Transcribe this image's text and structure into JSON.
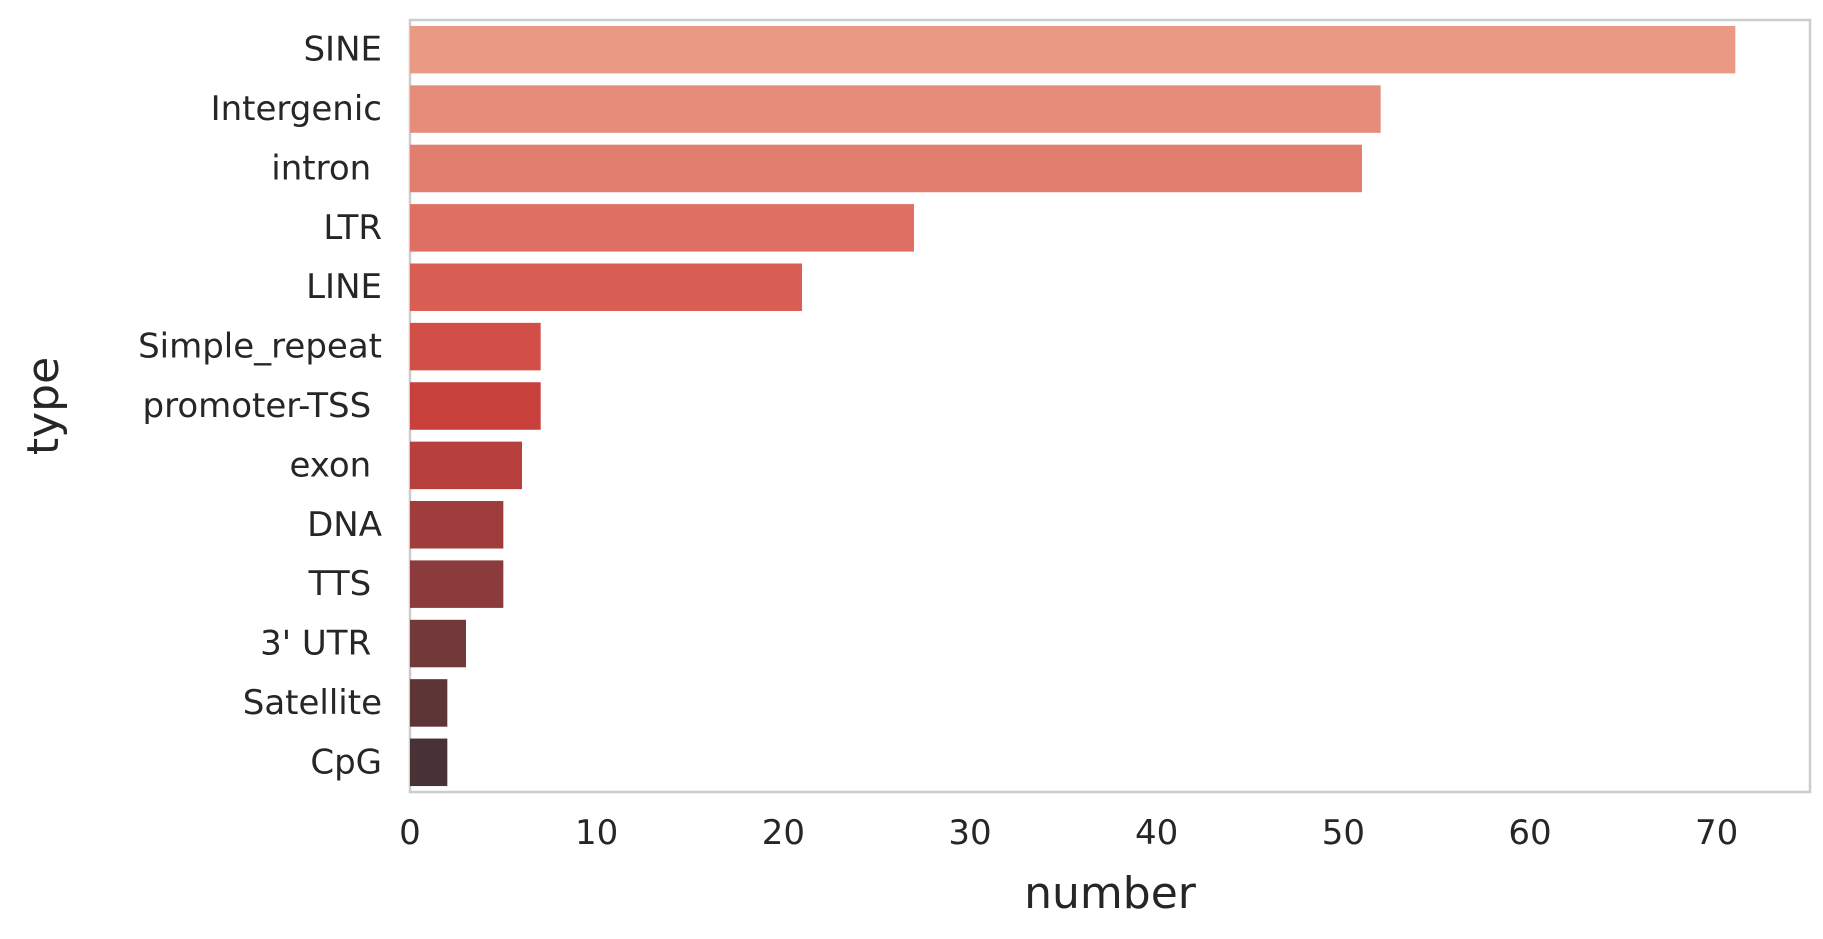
{
  "chart_data": {
    "type": "bar",
    "orientation": "horizontal",
    "categories": [
      "SINE",
      "Intergenic",
      "intron ",
      "LTR",
      "LINE",
      "Simple_repeat",
      "promoter-TSS ",
      "exon ",
      "DNA",
      "TTS ",
      "3' UTR ",
      "Satellite",
      "CpG"
    ],
    "values": [
      71,
      52,
      51,
      27,
      21,
      7,
      7,
      6,
      5,
      5,
      3,
      2,
      2
    ],
    "colors": [
      "#ea9a84",
      "#e58d7a",
      "#e27e6f",
      "#df6f62",
      "#d95f55",
      "#d24f47",
      "#c7403c",
      "#b7403f",
      "#9e3d3b",
      "#8b3b3b",
      "#73393a",
      "#5e3537",
      "#483235"
    ],
    "xlabel": "number",
    "ylabel": "type",
    "xlim": [
      0,
      75
    ],
    "xticks": [
      0,
      10,
      20,
      30,
      40,
      50,
      60,
      70
    ],
    "grid": false
  }
}
